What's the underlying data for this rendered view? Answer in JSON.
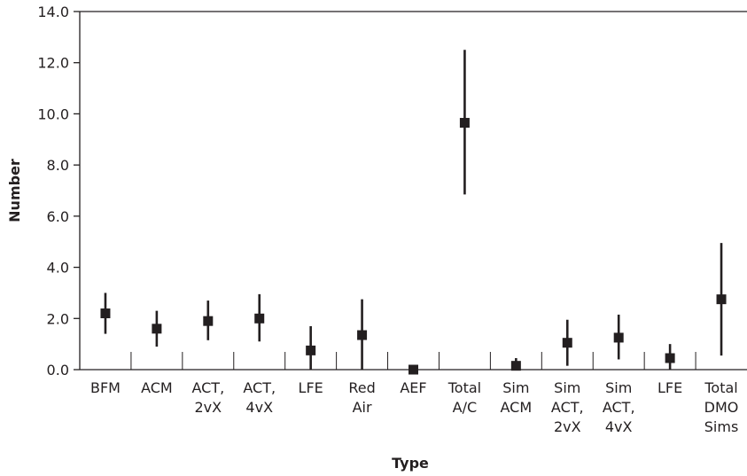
{
  "chart_data": {
    "type": "scatter",
    "title": "",
    "xlabel": "Type",
    "ylabel": "Number",
    "ylim": [
      0,
      14
    ],
    "yticks": [
      "0.0",
      "2.0",
      "4.0",
      "6.0",
      "8.0",
      "10.0",
      "12.0",
      "14.0"
    ],
    "grid": false,
    "colors": {
      "marker": "#231f20",
      "axis": "#231f20"
    },
    "categories": [
      [
        "BFM"
      ],
      [
        "ACM"
      ],
      [
        "ACT,",
        "2vX"
      ],
      [
        "ACT,",
        "4vX"
      ],
      [
        "LFE"
      ],
      [
        "Red",
        "Air"
      ],
      [
        "AEF"
      ],
      [
        "Total",
        "A/C"
      ],
      [
        "Sim",
        "ACM"
      ],
      [
        "Sim",
        "ACT,",
        "2vX"
      ],
      [
        "Sim",
        "ACT,",
        "4vX"
      ],
      [
        "LFE"
      ],
      [
        "Total",
        "DMO",
        "Sims"
      ]
    ],
    "series": [
      {
        "values": [
          2.2,
          1.6,
          1.9,
          2.0,
          0.75,
          1.35,
          0.0,
          9.65,
          0.15,
          1.05,
          1.25,
          0.45,
          2.75
        ],
        "low": [
          1.4,
          0.9,
          1.15,
          1.1,
          0.0,
          0.0,
          0.0,
          6.85,
          0.0,
          0.15,
          0.4,
          0.0,
          0.55
        ],
        "high": [
          3.0,
          2.3,
          2.7,
          2.95,
          1.7,
          2.75,
          0.05,
          12.5,
          0.45,
          1.95,
          2.15,
          1.0,
          4.95
        ]
      }
    ]
  }
}
